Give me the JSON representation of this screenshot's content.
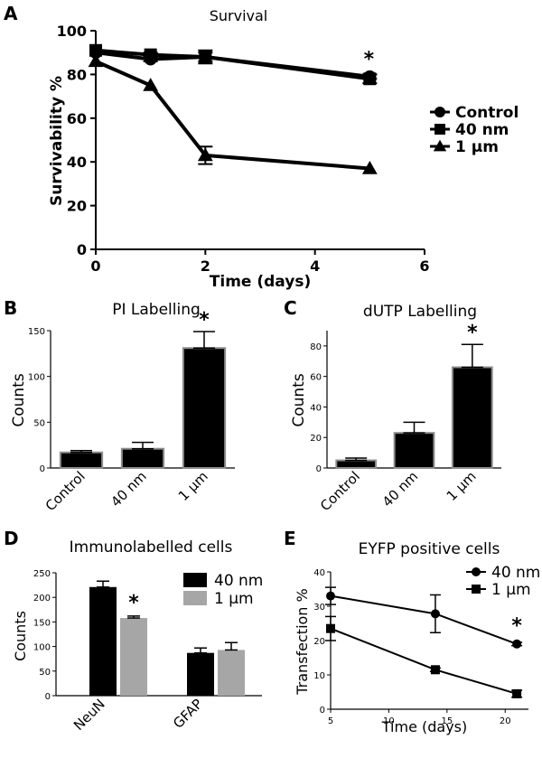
{
  "chart_data": [
    {
      "panel": "A",
      "type": "line",
      "title": "Survival",
      "xlabel": "Time (days)",
      "ylabel": "Survivability %",
      "xlim": [
        0,
        6
      ],
      "ylim": [
        0,
        100
      ],
      "x_ticks": [
        0,
        2,
        4,
        6
      ],
      "y_ticks": [
        0,
        20,
        40,
        60,
        80,
        100
      ],
      "legend_position": "right",
      "annotations": [
        {
          "text": "*",
          "x": 5,
          "y": 85
        }
      ],
      "series": [
        {
          "name": "Control",
          "marker": "circle",
          "x": [
            0,
            1,
            2,
            5
          ],
          "y": [
            90,
            87,
            88,
            79
          ],
          "err": [
            0,
            1,
            2,
            1
          ]
        },
        {
          "name": "40 nm",
          "marker": "square",
          "x": [
            0,
            1,
            2,
            5
          ],
          "y": [
            91,
            89,
            88,
            78
          ],
          "err": [
            0,
            1,
            3,
            2
          ]
        },
        {
          "name": "1 µm",
          "marker": "triangle",
          "x": [
            0,
            1,
            2,
            5
          ],
          "y": [
            86,
            75,
            43,
            37
          ],
          "err": [
            0,
            0,
            4,
            0
          ]
        }
      ]
    },
    {
      "panel": "B",
      "type": "bar",
      "title": "PI Labelling",
      "xlabel": "",
      "ylabel": "Counts",
      "ylim": [
        0,
        150
      ],
      "y_ticks": [
        0,
        50,
        100,
        150
      ],
      "categories": [
        "Control",
        "40 nm",
        "1 µm"
      ],
      "values": [
        17,
        21,
        131
      ],
      "err": [
        2,
        7,
        18
      ],
      "annotations": [
        {
          "text": "*",
          "category": "1 µm"
        }
      ]
    },
    {
      "panel": "C",
      "type": "bar",
      "title": "dUTP Labelling",
      "xlabel": "",
      "ylabel": "Counts",
      "ylim": [
        0,
        90
      ],
      "y_ticks": [
        0,
        20,
        40,
        60,
        80
      ],
      "categories": [
        "Control",
        "40 nm",
        "1 µm"
      ],
      "values": [
        5,
        23,
        66
      ],
      "err": [
        1.5,
        7,
        15
      ],
      "annotations": [
        {
          "text": "*",
          "category": "1 µm"
        }
      ]
    },
    {
      "panel": "D",
      "type": "bar",
      "title": "Immunolabelled cells",
      "xlabel": "",
      "ylabel": "Counts",
      "ylim": [
        0,
        250
      ],
      "y_ticks": [
        0,
        50,
        100,
        150,
        200,
        250
      ],
      "categories": [
        "NeuN",
        "GFAP"
      ],
      "legend_position": "top-right",
      "series": [
        {
          "name": "40 nm",
          "color": "#000000",
          "values": [
            221,
            87
          ],
          "err": [
            12,
            10
          ]
        },
        {
          "name": "1 µm",
          "color": "#a6a6a6",
          "values": [
            158,
            93
          ],
          "err": [
            4,
            15
          ]
        }
      ],
      "annotations": [
        {
          "text": "*",
          "category": "NeuN",
          "series": "1 µm"
        }
      ]
    },
    {
      "panel": "E",
      "type": "line",
      "title": "EYFP positive cells",
      "xlabel": "Time (days)",
      "ylabel": "Transfection %",
      "xlim": [
        5,
        22
      ],
      "ylim": [
        0,
        40
      ],
      "x_ticks": [
        5,
        10,
        15,
        20
      ],
      "y_ticks": [
        0,
        10,
        20,
        30,
        40
      ],
      "legend_position": "top-right",
      "annotations": [
        {
          "text": "*",
          "x": 21,
          "y": 23
        }
      ],
      "series": [
        {
          "name": "40 nm",
          "marker": "circle",
          "x": [
            5,
            14,
            21
          ],
          "y": [
            33,
            27.8,
            19
          ],
          "err": [
            2.5,
            5.5,
            0.5
          ]
        },
        {
          "name": "1 µm",
          "marker": "square",
          "x": [
            5,
            14,
            21
          ],
          "y": [
            23.5,
            11.5,
            4.5
          ],
          "err": [
            3.5,
            0.5,
            1
          ]
        }
      ]
    }
  ]
}
